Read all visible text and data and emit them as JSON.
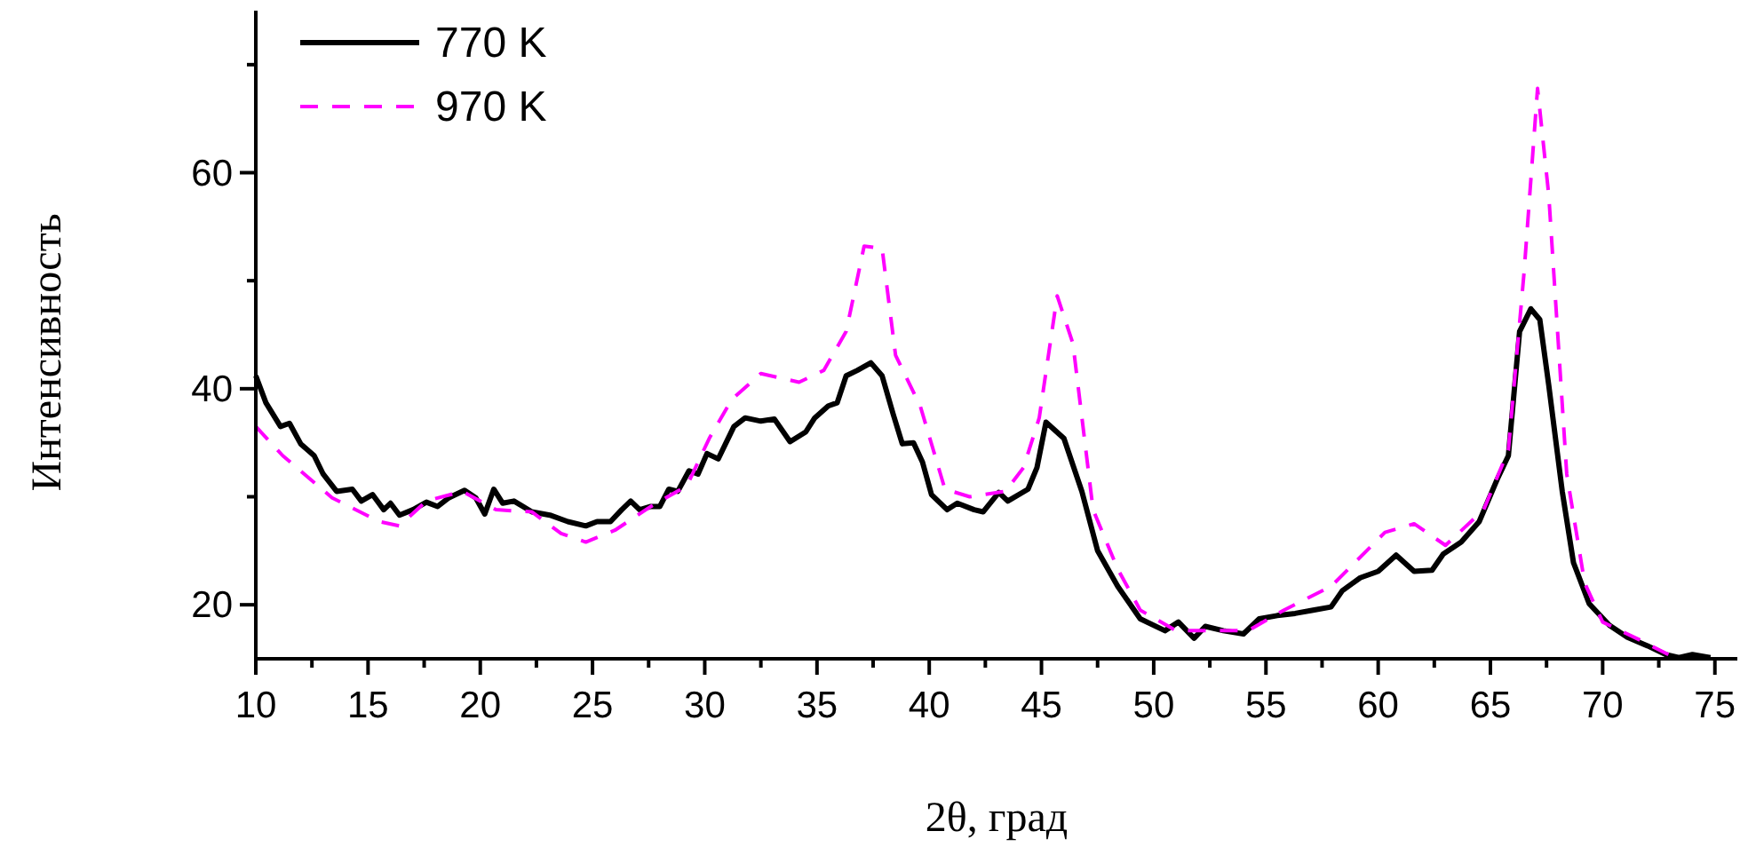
{
  "chart_data": {
    "type": "line",
    "xlabel": "2θ, град",
    "ylabel": "Интенсивность",
    "xlim": [
      10,
      76
    ],
    "ylim": [
      15,
      75
    ],
    "xticks": [
      10,
      {
        "value": 12.5,
        "label": null
      },
      15,
      {
        "value": 17.5,
        "label": null
      },
      20,
      {
        "value": 22.5,
        "label": null
      },
      25,
      {
        "value": 27.5,
        "label": null
      },
      30,
      {
        "value": 32.5,
        "label": null
      },
      35,
      {
        "value": 37.5,
        "label": null
      },
      40,
      {
        "value": 42.5,
        "label": null
      },
      45,
      {
        "value": 47.5,
        "label": null
      },
      50,
      {
        "value": 52.5,
        "label": null
      },
      55,
      {
        "value": 57.5,
        "label": null
      },
      60,
      {
        "value": 62.5,
        "label": null
      },
      65,
      {
        "value": 67.5,
        "label": null
      },
      70,
      {
        "value": 72.5,
        "label": null
      },
      75
    ],
    "yticks": [
      20,
      {
        "value": 30,
        "label": null
      },
      40,
      {
        "value": 50,
        "label": null
      },
      60,
      {
        "value": 70,
        "label": null
      }
    ],
    "grid": false,
    "legend": "top left",
    "marker": "none",
    "series": [
      {
        "name": "770 K",
        "color": "#000000",
        "line_style": "solid",
        "x": [
          10,
          10.45,
          11.1,
          11.5,
          12.0,
          12.6,
          13.0,
          13.6,
          14.3,
          14.7,
          15.2,
          15.7,
          16.0,
          16.4,
          17.0,
          17.6,
          18.1,
          18.6,
          19.3,
          19.8,
          20.2,
          20.6,
          21.0,
          21.5,
          22.3,
          23.1,
          23.9,
          24.7,
          25.2,
          25.8,
          26.3,
          26.7,
          27.1,
          27.6,
          28.0,
          28.4,
          28.8,
          29.3,
          29.7,
          30.1,
          30.6,
          31.3,
          31.8,
          32.5,
          33.1,
          33.8,
          34.5,
          34.9,
          35.5,
          35.9,
          36.3,
          36.8,
          37.4,
          37.9,
          38.4,
          38.8,
          39.3,
          39.7,
          40.1,
          40.8,
          41.25,
          42.0,
          42.4,
          43.1,
          43.5,
          44.4,
          44.8,
          45.2,
          46.0,
          46.8,
          47.5,
          48.4,
          49.4,
          50.5,
          51.1,
          51.8,
          52.3,
          53.1,
          54.0,
          54.7,
          55.5,
          56.3,
          57.1,
          57.9,
          58.4,
          59.2,
          60.0,
          60.8,
          61.6,
          62.4,
          62.9,
          63.7,
          64.5,
          65.3,
          65.8,
          66.3,
          66.8,
          67.2,
          67.6,
          68.2,
          68.7,
          69.4,
          70.3,
          71.1,
          72.0,
          72.8,
          73.4,
          74.0,
          74.8
        ],
        "values": [
          41.2,
          38.7,
          36.5,
          36.8,
          34.9,
          33.8,
          32.1,
          30.5,
          30.7,
          29.6,
          30.2,
          28.8,
          29.4,
          28.3,
          28.8,
          29.5,
          29.1,
          29.9,
          30.6,
          29.9,
          28.4,
          30.7,
          29.4,
          29.6,
          28.6,
          28.3,
          27.7,
          27.3,
          27.7,
          27.7,
          28.8,
          29.6,
          28.8,
          29.1,
          29.1,
          30.7,
          30.5,
          32.4,
          32.1,
          34.0,
          33.5,
          36.5,
          37.3,
          37.0,
          37.2,
          35.1,
          36.0,
          37.3,
          38.4,
          38.7,
          41.2,
          41.7,
          42.4,
          41.2,
          37.6,
          34.9,
          35.0,
          33.2,
          30.2,
          28.8,
          29.4,
          28.8,
          28.6,
          30.4,
          29.6,
          30.7,
          32.7,
          36.9,
          35.4,
          30.5,
          25.0,
          21.7,
          18.7,
          17.6,
          18.4,
          16.9,
          18.0,
          17.6,
          17.3,
          18.7,
          19.0,
          19.2,
          19.5,
          19.8,
          21.3,
          22.5,
          23.1,
          24.6,
          23.1,
          23.2,
          24.7,
          25.8,
          27.7,
          31.6,
          33.8,
          45.3,
          47.4,
          46.4,
          40.3,
          30.5,
          23.9,
          20.1,
          18.1,
          17.0,
          16.2,
          15.4,
          15.1,
          15.4,
          15.1
        ]
      },
      {
        "name": "970 K",
        "color": "#ff00ff",
        "line_style": "dashed",
        "x": [
          10,
          11.2,
          13.4,
          15.5,
          16.4,
          17.6,
          19.2,
          20.7,
          22.3,
          23.6,
          24.7,
          26.0,
          27.6,
          29.2,
          30.2,
          31.2,
          32.5,
          34.2,
          35.3,
          36.3,
          37.1,
          37.9,
          38.5,
          39.6,
          40.7,
          41.8,
          42.4,
          43.4,
          44.2,
          44.9,
          45.7,
          46.4,
          47.3,
          48.4,
          49.4,
          51.0,
          52.3,
          54.2,
          55.8,
          57.9,
          60.3,
          61.6,
          63.0,
          64.7,
          65.8,
          66.5,
          67.1,
          67.6,
          68.4,
          69.2,
          70.0,
          71.6,
          73.2
        ],
        "values": [
          36.5,
          33.8,
          29.9,
          27.7,
          27.3,
          29.6,
          30.5,
          28.8,
          28.6,
          26.6,
          25.8,
          26.9,
          29.1,
          31.0,
          35.4,
          39.0,
          41.4,
          40.6,
          41.7,
          45.3,
          53.2,
          53.0,
          43.1,
          38.4,
          30.7,
          30.0,
          30.2,
          30.5,
          32.7,
          37.3,
          48.6,
          44.2,
          28.8,
          23.3,
          19.5,
          17.6,
          17.6,
          17.6,
          19.5,
          21.7,
          26.7,
          27.5,
          25.5,
          28.8,
          34.3,
          50.8,
          67.8,
          57.9,
          32.1,
          22.0,
          18.4,
          16.8,
          15.1
        ]
      }
    ]
  }
}
